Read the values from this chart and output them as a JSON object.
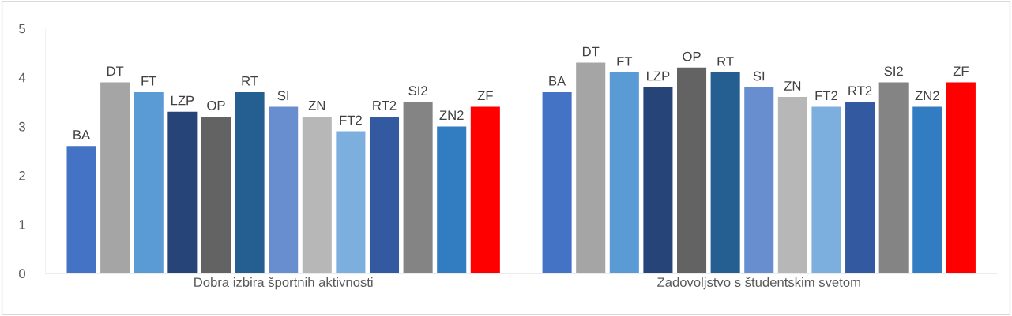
{
  "chart_data": {
    "type": "bar",
    "categories": [
      "Dobra izbira športnih aktivnosti",
      "Zadovoljstvo s študentskim svetom"
    ],
    "series": [
      {
        "name": "BA",
        "color": "#4472c4",
        "values": [
          2.6,
          3.7
        ]
      },
      {
        "name": "DT",
        "color": "#a5a5a5",
        "values": [
          3.9,
          4.3
        ]
      },
      {
        "name": "FT",
        "color": "#5b9bd5",
        "values": [
          3.7,
          4.1
        ]
      },
      {
        "name": "LZP",
        "color": "#264478",
        "values": [
          3.3,
          3.8
        ]
      },
      {
        "name": "OP",
        "color": "#636363",
        "values": [
          3.2,
          4.2
        ]
      },
      {
        "name": "RT",
        "color": "#255e91",
        "values": [
          3.7,
          4.1
        ]
      },
      {
        "name": "SI",
        "color": "#698ed0",
        "values": [
          3.4,
          3.8
        ]
      },
      {
        "name": "ZN",
        "color": "#b7b7b7",
        "values": [
          3.2,
          3.6
        ]
      },
      {
        "name": "FT2",
        "color": "#7cafdd",
        "values": [
          2.9,
          3.4
        ]
      },
      {
        "name": "RT2",
        "color": "#335aa1",
        "values": [
          3.2,
          3.5
        ]
      },
      {
        "name": "SI2",
        "color": "#848484",
        "values": [
          3.5,
          3.9
        ]
      },
      {
        "name": "ZN2",
        "color": "#327dc2",
        "values": [
          3.0,
          3.4
        ]
      },
      {
        "name": "ZF",
        "color": "#ff0000",
        "values": [
          3.4,
          3.9
        ]
      }
    ],
    "ylim": [
      0,
      5
    ],
    "yticks": [
      0,
      1,
      2,
      3,
      4,
      5
    ],
    "grid": false,
    "legend": false
  }
}
